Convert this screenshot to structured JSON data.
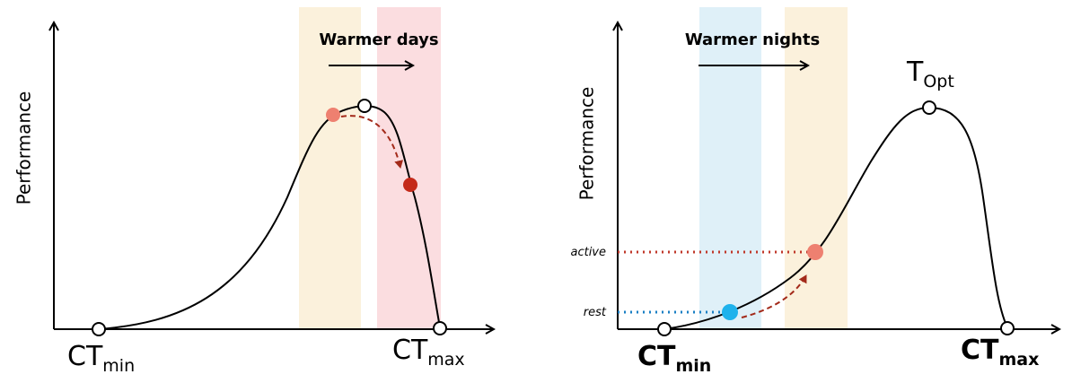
{
  "left_panel": {
    "y_label": "Performance",
    "arrow_label": "Warmer days",
    "x_start": {
      "base": "CT",
      "sub": "min"
    },
    "x_end": {
      "base": "CT",
      "sub": "max"
    }
  },
  "right_panel": {
    "y_label": "Performance",
    "arrow_label": "Warmer nights",
    "peak": {
      "base": "T",
      "sub": "Opt"
    },
    "x_start": {
      "base": "CT",
      "sub": "min"
    },
    "x_end": {
      "base": "CT",
      "sub": "max"
    },
    "levels": [
      "active",
      "rest"
    ]
  }
}
